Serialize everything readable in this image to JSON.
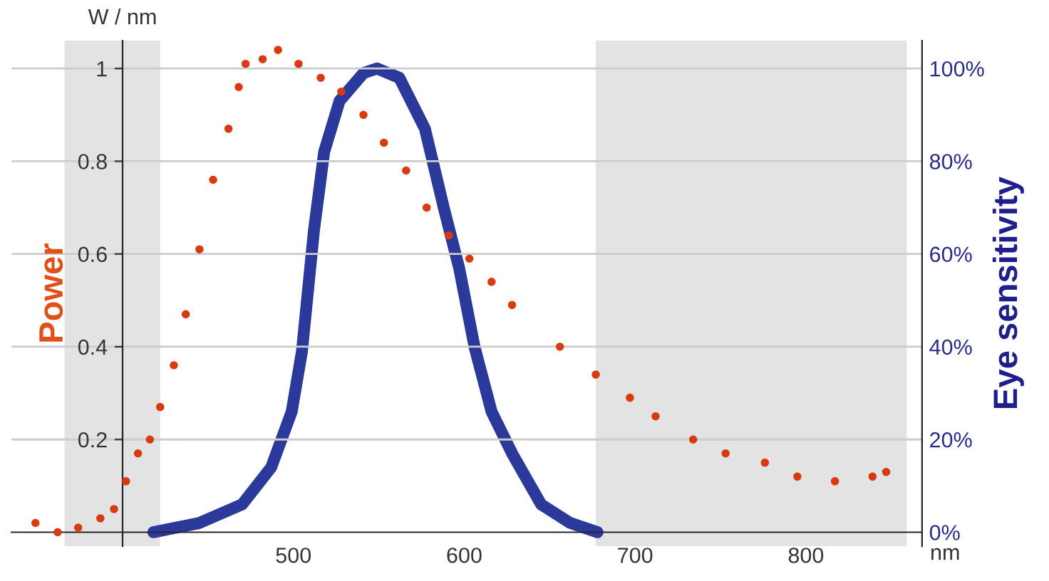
{
  "chart_data": {
    "type": "scatter",
    "xlabel": "nm",
    "ylabel": "Power",
    "y2label": "Eye sensitivity",
    "annotations": [
      "W / nm"
    ],
    "xlim": [
      335,
      868
    ],
    "xticks": [
      {
        "value": 400,
        "label": null
      },
      500,
      600,
      700,
      800
    ],
    "ylim": [
      -0.03,
      1.06
    ],
    "yticks": [
      0.2,
      0.4,
      0.6,
      0.8,
      {
        "value": 1,
        "label": "1"
      }
    ],
    "y2lim": [
      -3,
      106
    ],
    "y2ticks": [
      {
        "value": 0,
        "label": "0%"
      },
      {
        "value": 20,
        "label": "20%"
      },
      {
        "value": 40,
        "label": "40%"
      },
      {
        "value": 60,
        "label": "60%"
      },
      {
        "value": 80,
        "label": "80%"
      },
      {
        "value": 100,
        "label": "100%"
      }
    ],
    "grid": "y",
    "legend": false,
    "marker": "circle",
    "bands": [
      {
        "axis": "x",
        "from": 366,
        "to": 422,
        "color": "#e3e3e3"
      },
      {
        "axis": "x",
        "from": 677,
        "to": 859,
        "color": "#e3e3e3"
      }
    ],
    "series": [
      {
        "color": "#d93a0f",
        "x": [
          349,
          362,
          374,
          387,
          395,
          402,
          409,
          416,
          422,
          430,
          437,
          445,
          453,
          462,
          468,
          472,
          482,
          491,
          503,
          516,
          528,
          541,
          553,
          566,
          578,
          591,
          603,
          616,
          628,
          656,
          677,
          697,
          712,
          734,
          753,
          776,
          795,
          817,
          839,
          847
        ],
        "values": [
          0.02,
          0.0,
          0.01,
          0.03,
          0.05,
          0.11,
          0.17,
          0.2,
          0.27,
          0.36,
          0.47,
          0.61,
          0.76,
          0.87,
          0.96,
          1.01,
          1.02,
          1.04,
          1.01,
          0.98,
          0.95,
          0.9,
          0.84,
          0.78,
          0.7,
          0.64,
          0.59,
          0.54,
          0.49,
          0.4,
          0.34,
          0.29,
          0.25,
          0.2,
          0.17,
          0.15,
          0.12,
          0.11,
          0.12,
          0.13
        ]
      },
      {
        "type": "line",
        "axis": "y2",
        "color": "#2b3a9a",
        "marker": "none",
        "x": [
          418,
          445,
          470,
          487,
          499,
          505,
          512,
          518,
          527,
          541,
          549,
          562,
          577,
          588,
          597,
          606,
          616,
          628,
          645,
          662,
          678
        ],
        "values": [
          0,
          2,
          6,
          14,
          26,
          39,
          65,
          82,
          93,
          99,
          100,
          98,
          87,
          70,
          57,
          40,
          26,
          17,
          6,
          2,
          0
        ]
      }
    ]
  }
}
